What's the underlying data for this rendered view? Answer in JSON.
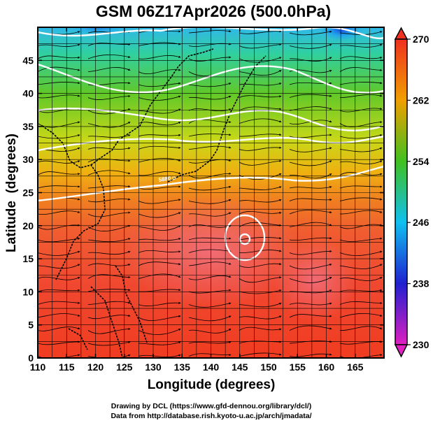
{
  "chart_data": {
    "type": "heatmap",
    "title": "GSM 06Z17Apr2026 (500.0hPa)",
    "xlabel": "Longitude (degrees)",
    "ylabel": "Latitude  (degrees)",
    "xlim": [
      110,
      170
    ],
    "ylim": [
      0,
      50
    ],
    "x_ticks": [
      "110",
      "115",
      "120",
      "125",
      "130",
      "135",
      "140",
      "145",
      "150",
      "155",
      "160",
      "165"
    ],
    "y_ticks": [
      "0",
      "5",
      "10",
      "15",
      "20",
      "25",
      "30",
      "35",
      "40",
      "45"
    ],
    "colorbar": {
      "range": [
        230,
        270
      ],
      "ticks": [
        "230",
        "238",
        "246",
        "254",
        "262",
        "270"
      ],
      "colors": [
        "#e020c0",
        "#2020d0",
        "#10c0f0",
        "#40c020",
        "#f0a000",
        "#f03020"
      ]
    },
    "contour_label": "5880.0",
    "grid": true,
    "overlay": "streamlines"
  },
  "credits": {
    "line1": "Drawing by DCL (https://www.gfd-dennou.org/library/dcl/)",
    "line2": "Data from http://database.rish.kyoto-u.ac.jp/arch/jmadata/"
  }
}
